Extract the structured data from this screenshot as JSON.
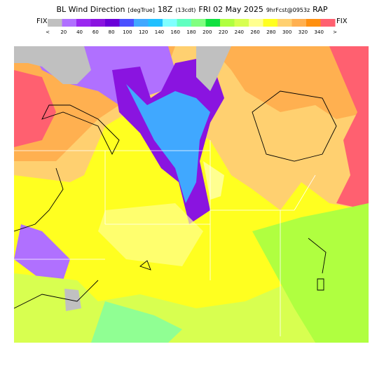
{
  "header": {
    "title_parts": [
      {
        "text": "BL Wind Direction",
        "size": "large"
      },
      {
        "text": "[degTrue]",
        "size": "small"
      },
      {
        "text": "18Z",
        "size": "large"
      },
      {
        "text": "(13cdt)",
        "size": "small"
      },
      {
        "text": "FRI 02 May 2025",
        "size": "large"
      },
      {
        "text": "9hrFcst@0953z",
        "size": "small"
      },
      {
        "text": "RAP",
        "size": "large"
      }
    ]
  },
  "colorbar": {
    "left_label": "FIX",
    "right_label": "FIX",
    "colors": [
      "#c0c0c0",
      "#b070ff",
      "#9a28f0",
      "#8a14e0",
      "#6a00d8",
      "#4a50ff",
      "#40a8ff",
      "#20c0ff",
      "#80ffff",
      "#60ffc0",
      "#80ff80",
      "#10e040",
      "#b0ff40",
      "#d8ff50",
      "#ffff90",
      "#ffff20",
      "#ffd070",
      "#ffb050",
      "#ff9010",
      "#ff6070"
    ],
    "labels": [
      "<",
      "20",
      "40",
      "60",
      "80",
      "100",
      "120",
      "140",
      "160",
      "180",
      "200",
      "220",
      "240",
      "260",
      "280",
      "300",
      "320",
      "340",
      ">"
    ]
  }
}
